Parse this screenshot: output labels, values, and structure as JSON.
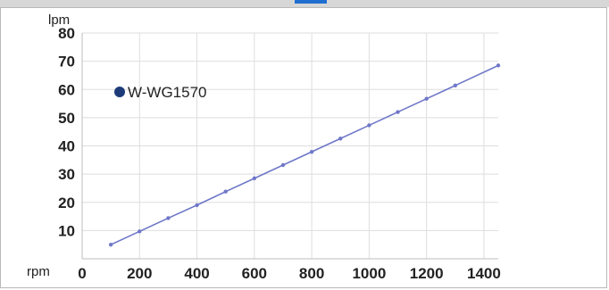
{
  "chart_data": {
    "type": "line",
    "title": "",
    "xlabel": "rpm",
    "ylabel": "lpm",
    "xlim": [
      0,
      1450
    ],
    "ylim": [
      0,
      80
    ],
    "x_ticks": [
      0,
      200,
      400,
      600,
      800,
      1000,
      1200,
      1400
    ],
    "y_ticks": [
      10,
      20,
      30,
      40,
      50,
      60,
      70,
      80
    ],
    "grid": true,
    "legend_placement": "top-left",
    "series": [
      {
        "name": "W-WG1570",
        "color": "#6f78c8",
        "legend_marker_color": "#1d3b78",
        "x": [
          100,
          200,
          300,
          400,
          500,
          600,
          700,
          800,
          900,
          1000,
          1100,
          1200,
          1300,
          1450
        ],
        "y": [
          5,
          9.7,
          14.4,
          19,
          23.8,
          28.5,
          33.2,
          37.9,
          42.6,
          47.3,
          52,
          56.7,
          61.4,
          68.5
        ]
      }
    ]
  }
}
